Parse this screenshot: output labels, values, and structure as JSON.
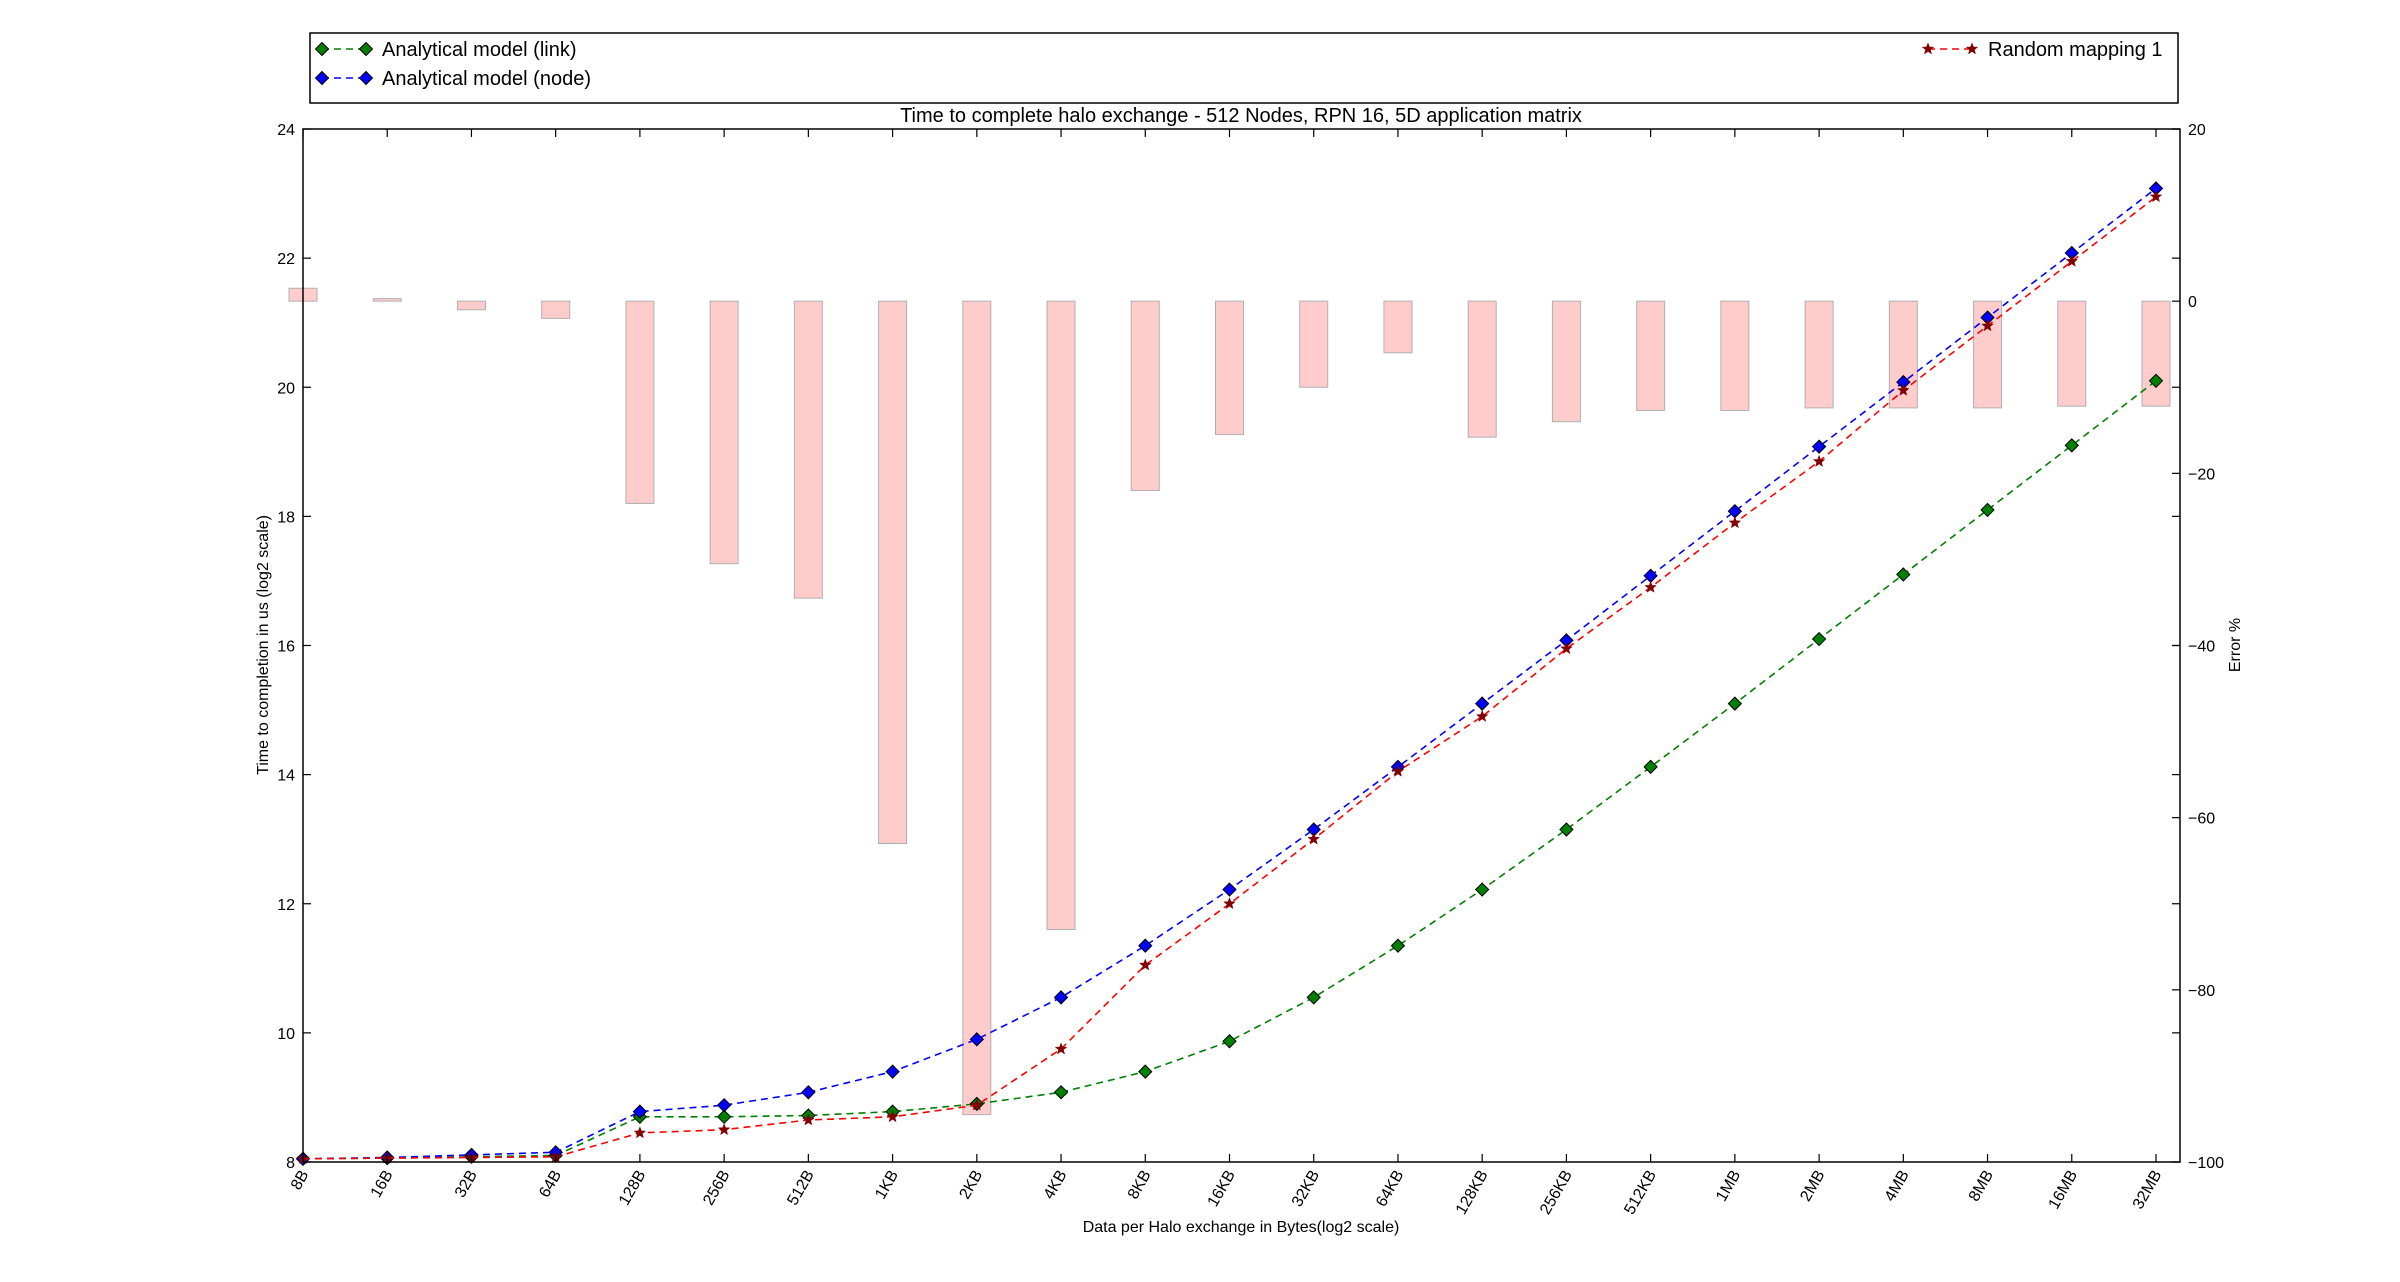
{
  "chart_data": {
    "type": "line",
    "title": "Time to complete halo exchange - 512 Nodes, RPN 16, 5D application matrix",
    "xlabel": "Data per Halo exchange in Bytes(log2 scale)",
    "ylabel": "Time to completion in us (log2 scale)",
    "y2label": "Error %",
    "categories": [
      "8B",
      "16B",
      "32B",
      "64B",
      "128B",
      "256B",
      "512B",
      "1KB",
      "2KB",
      "4KB",
      "8KB",
      "16KB",
      "32KB",
      "64KB",
      "128KB",
      "256KB",
      "512KB",
      "1MB",
      "2MB",
      "4MB",
      "8MB",
      "16MB",
      "32MB"
    ],
    "ylim": [
      8,
      24
    ],
    "yticks": [
      8,
      10,
      12,
      14,
      16,
      18,
      20,
      22,
      24
    ],
    "y2lim": [
      -100,
      20
    ],
    "y2ticks": [
      -100,
      -80,
      -60,
      -40,
      -20,
      0,
      20
    ],
    "grid": false,
    "legend": [
      {
        "label": "Analytical model (link)",
        "color": "#008000",
        "marker": "diamond",
        "position": "top-left"
      },
      {
        "label": "Analytical model (node)",
        "color": "#0000ff",
        "marker": "diamond",
        "position": "top-left"
      },
      {
        "label": "Random mapping 1",
        "color": "#ff0000",
        "marker": "star",
        "position": "top-right"
      }
    ],
    "series": [
      {
        "name": "Analytical model (link)",
        "color": "#008000",
        "line_style": "dashed",
        "marker": "diamond",
        "values": [
          8.05,
          8.06,
          8.08,
          8.1,
          8.7,
          8.7,
          8.72,
          8.78,
          8.9,
          9.08,
          9.4,
          9.87,
          10.55,
          11.35,
          12.22,
          13.15,
          14.12,
          15.1,
          16.1,
          17.1,
          18.1,
          19.1,
          20.1
        ]
      },
      {
        "name": "Analytical model (node)",
        "color": "#0000ff",
        "line_style": "dashed",
        "marker": "diamond",
        "values": [
          8.05,
          8.07,
          8.11,
          8.15,
          8.78,
          8.88,
          9.08,
          9.4,
          9.9,
          10.55,
          11.35,
          12.22,
          13.15,
          14.12,
          15.1,
          16.08,
          17.08,
          18.08,
          19.08,
          20.08,
          21.08,
          22.08,
          23.08
        ]
      },
      {
        "name": "Random mapping 1",
        "color": "#ff0000",
        "marker_color": "#800000",
        "line_style": "dashed",
        "marker": "star",
        "values": [
          8.05,
          8.06,
          8.07,
          8.08,
          8.45,
          8.5,
          8.65,
          8.7,
          8.88,
          9.75,
          11.05,
          12.0,
          13.0,
          14.05,
          14.9,
          15.95,
          16.9,
          17.9,
          18.85,
          19.95,
          20.95,
          21.95,
          22.95
        ]
      }
    ],
    "error_bars": {
      "axis": "right",
      "color": "#ffcccc",
      "edge_color": "#b0b0b0",
      "values": [
        1.5,
        0.3,
        -1.0,
        -2.0,
        -23.5,
        -30.5,
        -34.5,
        -63.0,
        -94.5,
        -73.0,
        -22.0,
        -15.5,
        -10.0,
        -6.0,
        -15.8,
        -14.0,
        -12.7,
        -12.7,
        -12.4,
        -12.4,
        -12.4,
        -12.2,
        -12.2
      ]
    }
  }
}
